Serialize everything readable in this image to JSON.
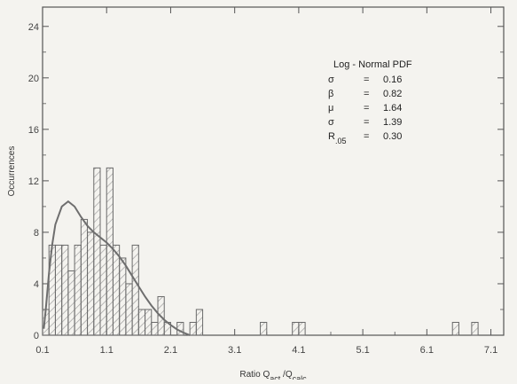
{
  "chart_data": {
    "type": "bar",
    "xlabel": "Ratio  Q",
    "xlabel_subscript_1": "act",
    "xlabel_mid": " /Q",
    "xlabel_subscript_2": "calc",
    "ylabel": "Occurrences",
    "xlim": [
      0.1,
      7.3
    ],
    "ylim": [
      0,
      25.5
    ],
    "x_ticks": [
      0.1,
      1.1,
      2.1,
      3.1,
      4.1,
      5.1,
      6.1,
      7.1
    ],
    "x_tick_labels": [
      "0.1",
      "1.1",
      "2.1",
      "3.1",
      "4.1",
      "5.1",
      "6.1",
      "7.1"
    ],
    "y_ticks": [
      0,
      4,
      8,
      12,
      16,
      20,
      24
    ],
    "y_tick_labels": [
      "0",
      "4",
      "8",
      "12",
      "16",
      "20",
      "24"
    ],
    "bin_width": 0.1,
    "bars": [
      {
        "x": 0.1,
        "value": 2
      },
      {
        "x": 0.2,
        "value": 7
      },
      {
        "x": 0.3,
        "value": 7
      },
      {
        "x": 0.4,
        "value": 7
      },
      {
        "x": 0.5,
        "value": 5
      },
      {
        "x": 0.6,
        "value": 7
      },
      {
        "x": 0.7,
        "value": 9
      },
      {
        "x": 0.8,
        "value": 8
      },
      {
        "x": 0.9,
        "value": 13
      },
      {
        "x": 1.0,
        "value": 7
      },
      {
        "x": 1.1,
        "value": 13
      },
      {
        "x": 1.2,
        "value": 7
      },
      {
        "x": 1.3,
        "value": 6
      },
      {
        "x": 1.4,
        "value": 4
      },
      {
        "x": 1.5,
        "value": 7
      },
      {
        "x": 1.6,
        "value": 2
      },
      {
        "x": 1.7,
        "value": 2
      },
      {
        "x": 1.8,
        "value": 1
      },
      {
        "x": 1.9,
        "value": 3
      },
      {
        "x": 2.0,
        "value": 1
      },
      {
        "x": 2.2,
        "value": 1
      },
      {
        "x": 2.4,
        "value": 1
      },
      {
        "x": 2.5,
        "value": 2
      },
      {
        "x": 3.5,
        "value": 1
      },
      {
        "x": 4.0,
        "value": 1
      },
      {
        "x": 4.1,
        "value": 1
      },
      {
        "x": 6.5,
        "value": 1
      },
      {
        "x": 6.8,
        "value": 1
      }
    ],
    "fit_curve": {
      "name": "Log - Normal PDF",
      "points": [
        [
          0.12,
          0.5
        ],
        [
          0.15,
          2.0
        ],
        [
          0.2,
          4.8
        ],
        [
          0.25,
          7.0
        ],
        [
          0.3,
          8.6
        ],
        [
          0.4,
          10.0
        ],
        [
          0.5,
          10.4
        ],
        [
          0.6,
          10.0
        ],
        [
          0.7,
          9.2
        ],
        [
          0.8,
          8.5
        ],
        [
          0.9,
          8.0
        ],
        [
          1.0,
          7.6
        ],
        [
          1.1,
          7.2
        ],
        [
          1.2,
          6.7
        ],
        [
          1.3,
          6.1
        ],
        [
          1.4,
          5.4
        ],
        [
          1.5,
          4.6
        ],
        [
          1.6,
          3.8
        ],
        [
          1.7,
          3.0
        ],
        [
          1.8,
          2.3
        ],
        [
          1.9,
          1.7
        ],
        [
          2.0,
          1.2
        ],
        [
          2.1,
          0.8
        ],
        [
          2.2,
          0.45
        ],
        [
          2.3,
          0.2
        ],
        [
          2.4,
          0.0
        ]
      ]
    },
    "legend": {
      "title": "Log - Normal PDF",
      "rows": [
        {
          "symbol": "σ",
          "sub": "",
          "eq": "=",
          "value": "0.16"
        },
        {
          "symbol": "β",
          "sub": "",
          "eq": "=",
          "value": "0.82"
        },
        {
          "symbol": "μ",
          "sub": "",
          "eq": "=",
          "value": "1.64"
        },
        {
          "symbol": "σ",
          "sub": "",
          "eq": "=",
          "value": "1.39"
        },
        {
          "symbol": "R",
          "sub": ".05",
          "eq": "=",
          "value": "0.30"
        }
      ]
    },
    "colors": {
      "axis": "#555555",
      "bar_stroke": "#6a6a6a",
      "hatch": "#9a9a9a",
      "curve": "#6e6e6e",
      "background": "#f4f3ef"
    }
  }
}
